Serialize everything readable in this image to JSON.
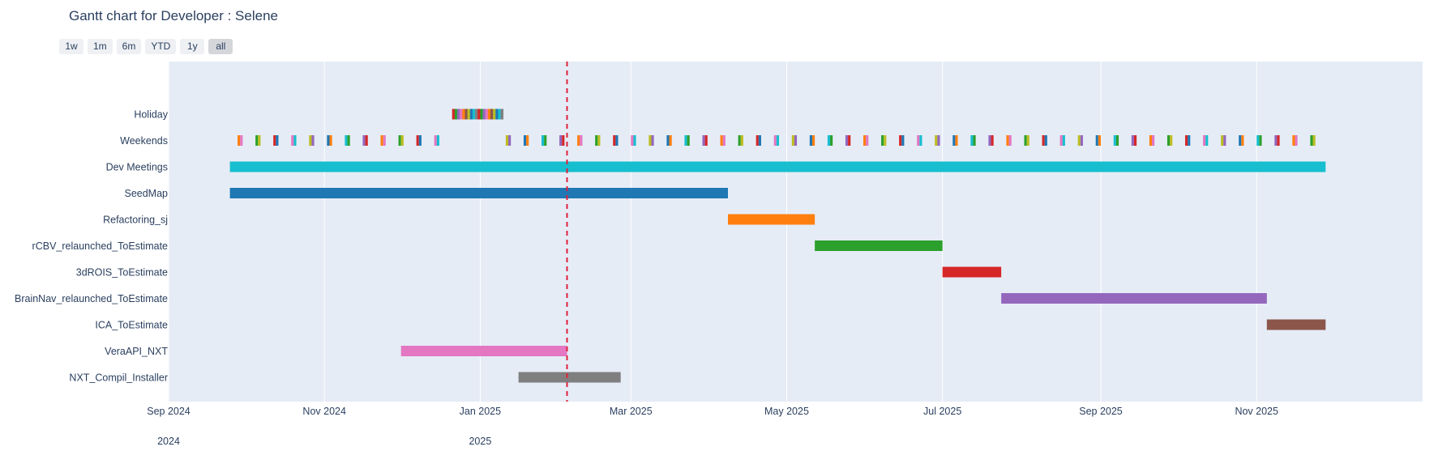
{
  "title": "Gantt chart for Developer : Selene",
  "range_buttons": [
    "1w",
    "1m",
    "6m",
    "YTD",
    "1y",
    "all"
  ],
  "active_range": "all",
  "colors": {
    "plot_bg": "#e5ecf6",
    "today_line": "#e0213a",
    "grid": "#ffffff"
  },
  "chart_data": {
    "type": "gantt",
    "title": "Gantt chart for Developer : Selene",
    "x_range": [
      "2024-09-01",
      "2026-01-05"
    ],
    "x_ticks": [
      {
        "date": "2024-09-01",
        "label": "Sep 2024"
      },
      {
        "date": "2024-11-01",
        "label": "Nov 2024"
      },
      {
        "date": "2025-01-01",
        "label": "Jan 2025"
      },
      {
        "date": "2025-03-01",
        "label": "Mar 2025"
      },
      {
        "date": "2025-05-01",
        "label": "May 2025"
      },
      {
        "date": "2025-07-01",
        "label": "Jul 2025"
      },
      {
        "date": "2025-09-01",
        "label": "Sep 2025"
      },
      {
        "date": "2025-11-01",
        "label": "Nov 2025"
      }
    ],
    "year_labels": [
      {
        "date": "2024-09-01",
        "label": "2024"
      },
      {
        "date": "2025-01-01",
        "label": "2025"
      }
    ],
    "today_marker": "2025-02-04",
    "tasks": [
      {
        "name": "NXT_Compil_Installer",
        "start": "2025-01-16",
        "end": "2025-02-25",
        "color": "#7f7f7f"
      },
      {
        "name": "VeraAPI_NXT",
        "start": "2024-12-01",
        "end": "2025-02-04",
        "color": "#e377c2"
      },
      {
        "name": "ICA_ToEstimate",
        "start": "2025-11-05",
        "end": "2025-11-28",
        "color": "#8c564b"
      },
      {
        "name": "BrainNav_relaunched_ToEstimate",
        "start": "2025-07-24",
        "end": "2025-11-05",
        "color": "#9467bd"
      },
      {
        "name": "3dROIS_ToEstimate",
        "start": "2025-07-01",
        "end": "2025-07-24",
        "color": "#d62728"
      },
      {
        "name": "rCBV_relaunched_ToEstimate",
        "start": "2025-05-12",
        "end": "2025-07-01",
        "color": "#2ca02c"
      },
      {
        "name": "Refactoring_sj",
        "start": "2025-04-08",
        "end": "2025-05-12",
        "color": "#ff7f0e"
      },
      {
        "name": "SeedMap",
        "start": "2024-09-25",
        "end": "2025-04-08",
        "color": "#1f77b4"
      },
      {
        "name": "Dev Meetings",
        "start": "2024-09-25",
        "end": "2025-11-28",
        "color": "#17becf"
      }
    ],
    "weekends": {
      "name": "Weekends",
      "from": "2024-09-28",
      "to": "2025-11-28",
      "gap": [
        "2024-12-21",
        "2025-01-10"
      ],
      "palette": [
        "#ff7f0e",
        "#2ca02c",
        "#d62728",
        "#e377c2",
        "#bcbd22",
        "#1f77b4",
        "#17becf",
        "#9467bd"
      ]
    },
    "holiday": {
      "name": "Holiday",
      "from": "2024-12-21",
      "to": "2025-01-09",
      "palette": [
        "#d62728",
        "#2ca02c",
        "#9467bd",
        "#e377c2",
        "#ff7f0e",
        "#8c564b",
        "#bcbd22",
        "#1f77b4",
        "#17becf",
        "#7f7f7f"
      ]
    },
    "row_order_top_to_bottom": [
      "Holiday",
      "Weekends",
      "Dev Meetings",
      "SeedMap",
      "Refactoring_sj",
      "rCBV_relaunched_ToEstimate",
      "3dROIS_ToEstimate",
      "BrainNav_relaunched_ToEstimate",
      "ICA_ToEstimate",
      "VeraAPI_NXT",
      "NXT_Compil_Installer"
    ]
  }
}
